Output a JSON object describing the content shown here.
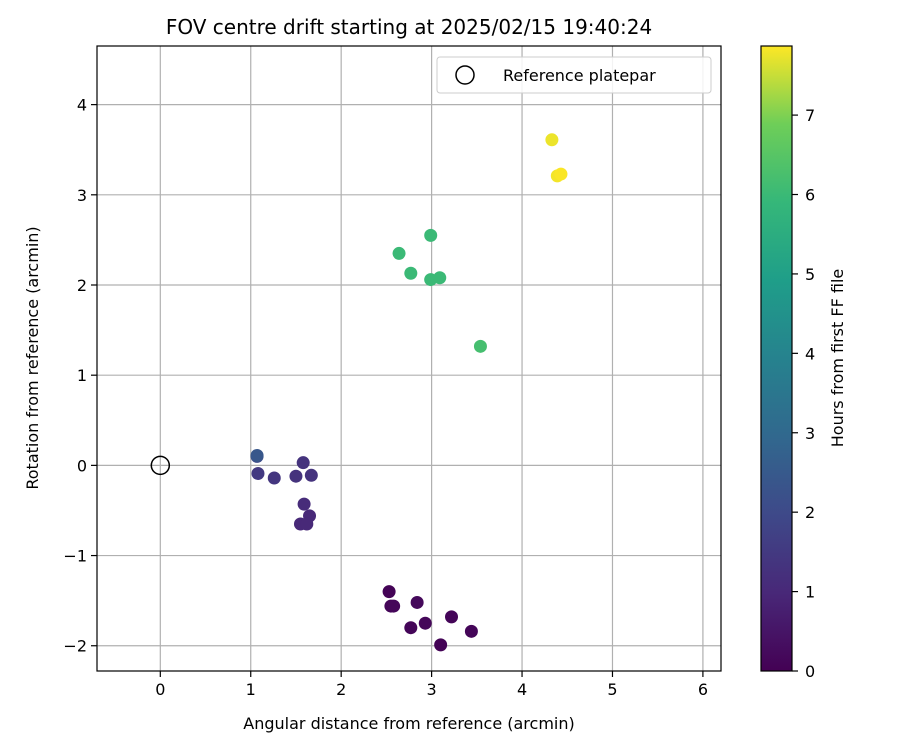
{
  "chart_data": {
    "type": "scatter",
    "title": "FOV centre drift starting at 2025/02/15 19:40:24",
    "xlabel": "Angular distance from reference (arcmin)",
    "ylabel": "Rotation from reference (arcmin)",
    "xlim": [
      -0.7,
      6.2
    ],
    "ylim": [
      -2.28,
      4.65
    ],
    "xticks": [
      "0",
      "1",
      "2",
      "3",
      "4",
      "5",
      "6"
    ],
    "yticks": [
      "−2",
      "−1",
      "0",
      "1",
      "2",
      "3",
      "4"
    ],
    "grid": true,
    "legend": {
      "placement": "top-right",
      "entries": [
        "Reference platepar"
      ]
    },
    "reference_point": {
      "x": 0,
      "y": 0
    },
    "colorbar": {
      "label": "Hours from first FF file",
      "range": [
        0,
        7.87
      ],
      "ticks": [
        "0",
        "1",
        "2",
        "3",
        "4",
        "5",
        "6",
        "7"
      ],
      "colormap": "viridis"
    },
    "points": [
      {
        "x": 2.53,
        "y": -1.4,
        "c": 0.05
      },
      {
        "x": 2.55,
        "y": -1.56,
        "c": 0.1
      },
      {
        "x": 2.58,
        "y": -1.56,
        "c": 0.15
      },
      {
        "x": 2.84,
        "y": -1.52,
        "c": 0.2
      },
      {
        "x": 2.77,
        "y": -1.8,
        "c": 0.1
      },
      {
        "x": 2.93,
        "y": -1.75,
        "c": 0.15
      },
      {
        "x": 3.1,
        "y": -1.99,
        "c": 0.05
      },
      {
        "x": 3.22,
        "y": -1.68,
        "c": 0.1
      },
      {
        "x": 3.44,
        "y": -1.84,
        "c": 0.1
      },
      {
        "x": 1.58,
        "y": 0.03,
        "c": 1.3
      },
      {
        "x": 1.5,
        "y": -0.12,
        "c": 1.3
      },
      {
        "x": 1.67,
        "y": -0.11,
        "c": 1.3
      },
      {
        "x": 1.26,
        "y": -0.14,
        "c": 1.4
      },
      {
        "x": 1.08,
        "y": -0.09,
        "c": 1.5
      },
      {
        "x": 1.59,
        "y": -0.43,
        "c": 1.1
      },
      {
        "x": 1.65,
        "y": -0.56,
        "c": 1.0
      },
      {
        "x": 1.55,
        "y": -0.65,
        "c": 1.0
      },
      {
        "x": 1.62,
        "y": -0.65,
        "c": 1.0
      },
      {
        "x": 1.07,
        "y": 0.1,
        "c": 2.0
      },
      {
        "x": 1.07,
        "y": 0.11,
        "c": 2.4
      },
      {
        "x": 2.64,
        "y": 2.35,
        "c": 6.0
      },
      {
        "x": 2.99,
        "y": 2.55,
        "c": 6.0
      },
      {
        "x": 2.77,
        "y": 2.13,
        "c": 6.0
      },
      {
        "x": 2.99,
        "y": 2.06,
        "c": 6.0
      },
      {
        "x": 3.09,
        "y": 2.08,
        "c": 6.0
      },
      {
        "x": 3.54,
        "y": 1.32,
        "c": 6.2
      },
      {
        "x": 4.33,
        "y": 3.61,
        "c": 7.75
      },
      {
        "x": 4.39,
        "y": 3.21,
        "c": 7.8
      },
      {
        "x": 4.43,
        "y": 3.23,
        "c": 7.85
      }
    ]
  }
}
